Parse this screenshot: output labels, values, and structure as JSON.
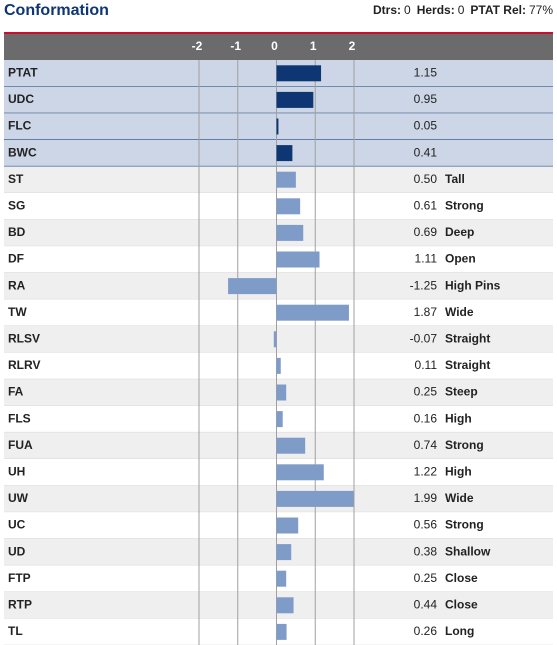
{
  "chart_data": {
    "type": "hbar",
    "title": "Conformation",
    "stats": [
      {
        "label": "Dtrs:",
        "value": "0"
      },
      {
        "label": "Herds:",
        "value": "0"
      },
      {
        "label": "PTAT Rel:",
        "value": "77%"
      }
    ],
    "categories": [
      "PTAT",
      "UDC",
      "FLC",
      "BWC",
      "ST",
      "SG",
      "BD",
      "DF",
      "RA",
      "TW",
      "RLSV",
      "RLRV",
      "FA",
      "FLS",
      "FUA",
      "UH",
      "UW",
      "UC",
      "UD",
      "FTP",
      "RTP",
      "TL"
    ],
    "values": [
      1.15,
      0.95,
      0.05,
      0.41,
      0.5,
      0.61,
      0.69,
      1.11,
      -1.25,
      1.87,
      -0.07,
      0.11,
      0.25,
      0.16,
      0.74,
      1.22,
      1.99,
      0.56,
      0.38,
      0.25,
      0.44,
      0.26
    ],
    "value_labels": [
      "1.15",
      "0.95",
      "0.05",
      "0.41",
      "0.50",
      "0.61",
      "0.69",
      "1.11",
      "-1.25",
      "1.87",
      "-0.07",
      "0.11",
      "0.25",
      "0.16",
      "0.74",
      "1.22",
      "1.99",
      "0.56",
      "0.38",
      "0.25",
      "0.44",
      "0.26"
    ],
    "descriptors": [
      null,
      null,
      null,
      null,
      "Tall",
      "Strong",
      "Deep",
      "Open",
      "High Pins",
      "Wide",
      "Straight",
      "Straight",
      "Steep",
      "High",
      "Strong",
      "High",
      "Wide",
      "Strong",
      "Shallow",
      "Close",
      "Close",
      "Long"
    ],
    "colors": [
      "#0d3672",
      "#0d3672",
      "#0d3672",
      "#0d3672",
      "#7f9cc8",
      "#7f9cc8",
      "#7f9cc8",
      "#7f9cc8",
      "#7f9cc8",
      "#7f9cc8",
      "#7f9cc8",
      "#7f9cc8",
      "#7f9cc8",
      "#7f9cc8",
      "#7f9cc8",
      "#7f9cc8",
      "#7f9cc8",
      "#7f9cc8",
      "#7f9cc8",
      "#7f9cc8",
      "#7f9cc8",
      "#7f9cc8"
    ],
    "row_colors": [
      "#ccd6e6",
      "#ccd6e6",
      "#ccd6e6",
      "#ccd6e6",
      "#efefef",
      "#ffffff",
      "#efefef",
      "#ffffff",
      "#efefef",
      "#ffffff",
      "#efefef",
      "#ffffff",
      "#efefef",
      "#ffffff",
      "#efefef",
      "#ffffff",
      "#efefef",
      "#ffffff",
      "#efefef",
      "#ffffff",
      "#efefef",
      "#ffffff"
    ],
    "xlim": [
      -2,
      2
    ],
    "xticks": [
      -2,
      -1,
      0,
      1,
      2
    ],
    "grid": true
  }
}
